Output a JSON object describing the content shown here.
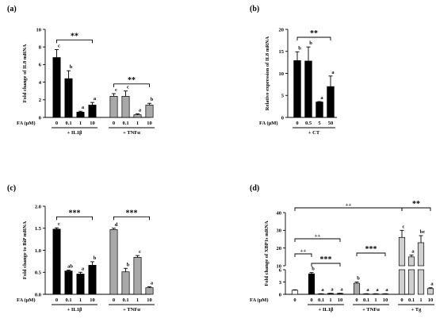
{
  "fa_label": "FA (μM)",
  "colors": {
    "black": "#000000",
    "grey": "#a9a9a9",
    "light": "#d0d0d0",
    "white": "#ffffff"
  },
  "chart_data": [
    {
      "panel": "(a)",
      "type": "bar",
      "ylabel": "Fold change of IL8 mRNA",
      "ylim": [
        0,
        10
      ],
      "yticks": [
        "0",
        "2",
        "4",
        "6",
        "8",
        "10"
      ],
      "categories": [
        "0",
        "0.1",
        "1",
        "10",
        "0",
        "0.1",
        "1",
        "10"
      ],
      "groups": [
        {
          "label": "+ IL1β",
          "indices": [
            0,
            1,
            2,
            3
          ]
        },
        {
          "label": "+ TNFα",
          "indices": [
            4,
            5,
            6,
            7
          ]
        }
      ],
      "values": [
        6.8,
        4.4,
        0.6,
        1.4,
        2.4,
        2.4,
        0.3,
        1.4
      ],
      "errors": [
        0.9,
        0.9,
        0.1,
        0.3,
        0.3,
        0.6,
        0.1,
        0.2
      ],
      "fills": [
        "black",
        "black",
        "black",
        "black",
        "grey",
        "grey",
        "grey",
        "grey"
      ],
      "letters": [
        "c",
        "b",
        "a",
        "a",
        "c",
        "c",
        "a",
        "b"
      ],
      "brackets": [
        {
          "from": 0,
          "to": 3,
          "y": 8.8,
          "text": "**"
        },
        {
          "from": 4,
          "to": 7,
          "y": 3.8,
          "text": "**"
        }
      ]
    },
    {
      "panel": "(b)",
      "type": "bar",
      "ylabel": "Relative expression of IL8 mRNA",
      "ylim": [
        0,
        20
      ],
      "yticks": [
        "0",
        "5",
        "10",
        "15",
        "20"
      ],
      "categories": [
        "0",
        "0.5",
        "5",
        "50"
      ],
      "groups": [
        {
          "label": "+ CT",
          "indices": [
            0,
            1,
            2,
            3
          ]
        }
      ],
      "values": [
        12.9,
        12.8,
        3.5,
        7.0
      ],
      "errors": [
        2.0,
        3.2,
        0.1,
        2.4
      ],
      "fills": [
        "black",
        "black",
        "black",
        "black"
      ],
      "letters": [
        "b",
        "b",
        "a",
        "a"
      ],
      "brackets": [
        {
          "from": 0,
          "to": 3,
          "y": 18.2,
          "text": "**"
        }
      ]
    },
    {
      "panel": "(c)",
      "type": "bar",
      "ylabel": "Fold change to BiP mRNA",
      "ylim": [
        0,
        2.0
      ],
      "yticks": [
        "0.0",
        "0.5",
        "1.0",
        "1.5",
        "2.0"
      ],
      "categories": [
        "0",
        "0.1",
        "1",
        "10",
        "0",
        "0.1",
        "1",
        "10"
      ],
      "groups": [
        {
          "label": "+ IL1β",
          "indices": [
            0,
            1,
            2,
            3
          ]
        },
        {
          "label": "+ TNFα",
          "indices": [
            4,
            5,
            6,
            7
          ]
        }
      ],
      "values": [
        1.48,
        0.53,
        0.46,
        0.66,
        1.47,
        0.51,
        0.84,
        0.15
      ],
      "errors": [
        0.03,
        0.02,
        0.04,
        0.08,
        0.03,
        0.08,
        0.04,
        0.02
      ],
      "fills": [
        "black",
        "black",
        "black",
        "black",
        "grey",
        "grey",
        "grey",
        "grey"
      ],
      "letters": [
        "c",
        "ab",
        "a",
        "b",
        "d",
        "b",
        "c",
        "a"
      ],
      "brackets": [
        {
          "from": 0,
          "to": 3,
          "y": 1.76,
          "text": "***"
        },
        {
          "from": 4,
          "to": 7,
          "y": 1.76,
          "text": "***"
        }
      ]
    },
    {
      "panel": "(d)",
      "type": "bar",
      "ylabel": "Fold change of XBP1s mRNA",
      "axis_breaks": [
        {
          "ylim": [
            0,
            6
          ],
          "yticks": [
            "0",
            "3",
            "6"
          ]
        },
        {
          "ylim": [
            10,
            40
          ],
          "yticks": [
            "10",
            "20",
            "30",
            "40"
          ]
        }
      ],
      "categories": [
        "0",
        "0",
        "0.1",
        "1",
        "10",
        "0",
        "0.1",
        "1",
        "10",
        "0",
        "0.1",
        "1",
        "10"
      ],
      "groups": [
        {
          "label": "+ IL1β",
          "indices": [
            1,
            2,
            3,
            4
          ]
        },
        {
          "label": "+ TNFα",
          "indices": [
            5,
            6,
            7,
            8
          ]
        },
        {
          "label": "+ Tg",
          "indices": [
            9,
            10,
            11,
            12
          ]
        }
      ],
      "values": [
        1.0,
        5.0,
        0.1,
        0.2,
        0.2,
        2.7,
        0.1,
        0.1,
        0.1,
        26.0,
        15.0,
        23.0,
        1.4
      ],
      "errors": [
        0.1,
        0.3,
        0.05,
        0.05,
        0.05,
        0.3,
        0.05,
        0.05,
        0.05,
        4.0,
        1.0,
        4.0,
        0.2
      ],
      "fills": [
        "white",
        "black",
        "black",
        "black",
        "black",
        "grey",
        "grey",
        "grey",
        "grey",
        "light",
        "light",
        "light",
        "light"
      ],
      "letters": [
        "",
        "b",
        "a",
        "a",
        "a",
        "b",
        "a",
        "a",
        "a",
        "c",
        "a",
        "bc",
        "a"
      ],
      "brackets": [
        {
          "from": 0,
          "to": 9,
          "text": "++"
        },
        {
          "from": 0,
          "to": 4,
          "text": "++"
        },
        {
          "from": 0,
          "to": 1,
          "text": "++"
        },
        {
          "from": 1,
          "to": 4,
          "text": "***"
        },
        {
          "from": 5,
          "to": 8,
          "text": "***"
        },
        {
          "from": 9,
          "to": 12,
          "text": "**"
        }
      ]
    }
  ]
}
